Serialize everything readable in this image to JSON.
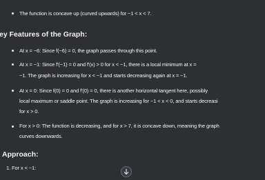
{
  "intro_bullet": "The function is concave up (curved upwards) for −1 < x < 7.",
  "section_heading": "ey Features of the Graph:",
  "features": [
    {
      "lines": [
        "At x = −6: Since f(−6) = 0, the graph passes through this point."
      ]
    },
    {
      "lines": [
        "At x = −1: Since f′(−1) = 0 and f′(x) > 0 for x < −1, there is a local minimum at x =",
        "−1. The graph is increasing for x < −1 and starts decreasing again at x = −1."
      ]
    },
    {
      "lines": [
        "At x = 0: Since f(0) = 0 and f′(0) = 0, there is another horizontal tangent here, possibly",
        "local maximum or saddle point. The graph is increasing for −1 < x < 0, and starts decreasi",
        "for x > 0."
      ]
    },
    {
      "lines": [
        "For x > 0: The function is decreasing, and for x > 7, it is concave down, meaning the graph",
        "curves downwards."
      ]
    }
  ],
  "approach": {
    "heading": "Approach:",
    "items": [
      "1. For x < −1:"
    ]
  }
}
